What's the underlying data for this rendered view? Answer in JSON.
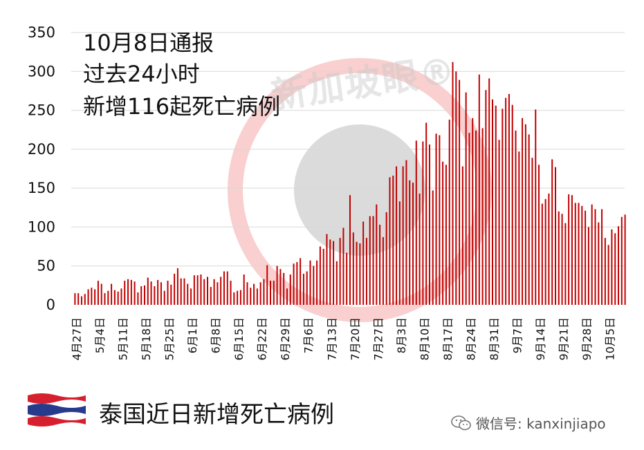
{
  "chart_data": {
    "type": "bar",
    "yticks": [
      0,
      50,
      100,
      150,
      200,
      250,
      300,
      350
    ],
    "ylim": [
      0,
      350
    ],
    "x_tick_labels": [
      "4月27日",
      "5月4日",
      "5月11日",
      "5月18日",
      "5月25日",
      "6月1日",
      "6月8日",
      "6月15日",
      "6月22日",
      "6月29日",
      "7月6日",
      "7月13日",
      "7月20日",
      "7月27日",
      "8月3日",
      "8月10日",
      "8月17日",
      "8月24日",
      "8月31日",
      "9月7日",
      "9月14日",
      "9月21日",
      "9月28日",
      "10月5日"
    ],
    "start_date": "4月27日",
    "end_date": "10月8日",
    "values": [
      15,
      15,
      11,
      14,
      20,
      22,
      20,
      31,
      27,
      15,
      18,
      27,
      19,
      17,
      21,
      31,
      33,
      32,
      30,
      16,
      24,
      25,
      35,
      30,
      24,
      32,
      29,
      18,
      31,
      26,
      40,
      47,
      34,
      34,
      27,
      21,
      38,
      38,
      39,
      33,
      36,
      23,
      33,
      29,
      36,
      43,
      43,
      31,
      16,
      18,
      19,
      39,
      29,
      22,
      27,
      21,
      29,
      33,
      51,
      31,
      31,
      50,
      46,
      41,
      21,
      39,
      53,
      55,
      60,
      40,
      43,
      57,
      50,
      57,
      75,
      72,
      91,
      84,
      82,
      56,
      86,
      99,
      67,
      141,
      93,
      81,
      79,
      107,
      86,
      114,
      114,
      129,
      103,
      87,
      119,
      164,
      166,
      178,
      133,
      178,
      186,
      160,
      157,
      211,
      143,
      210,
      234,
      206,
      147,
      220,
      218,
      184,
      180,
      238,
      312,
      300,
      289,
      178,
      273,
      221,
      240,
      224,
      296,
      227,
      276,
      291,
      264,
      256,
      212,
      252,
      266,
      271,
      257,
      224,
      197,
      240,
      232,
      219,
      189,
      251,
      180,
      130,
      136,
      143,
      187,
      177,
      120,
      117,
      105,
      142,
      141,
      131,
      131,
      127,
      121,
      100,
      129,
      123,
      106,
      123,
      86,
      77,
      97,
      92,
      101,
      113,
      116
    ]
  },
  "annotation": {
    "line1": "10月8日通报",
    "line2": "过去24小时",
    "line3": "新增116起死亡病例"
  },
  "footer": {
    "caption": "泰国近日新增死亡病例",
    "wechat": "微信号: kanxinjiapo",
    "watermark": "新加坡眼®"
  },
  "colors": {
    "bar": "#c00000",
    "grid": "#d9d9d9",
    "flag_red": "#d6202f",
    "flag_blue": "#283a8c"
  },
  "icons": {
    "flag": "thailand-flag-icon",
    "wechat": "wechat-icon"
  }
}
